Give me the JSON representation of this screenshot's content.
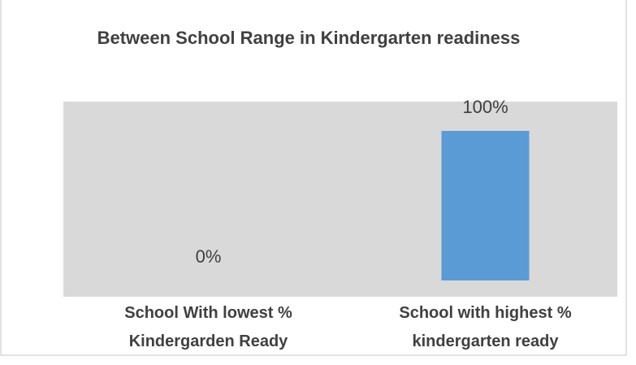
{
  "chart_data": {
    "type": "bar",
    "title": "Between School Range in Kindergarten readiness",
    "categories": [
      "School With lowest % Kindergarden Ready",
      "School with highest % kindergarten ready"
    ],
    "values": [
      0,
      100
    ],
    "value_labels": [
      "0%",
      "100%"
    ],
    "color": "#5b9bd5",
    "ylim": [
      0,
      100
    ]
  }
}
